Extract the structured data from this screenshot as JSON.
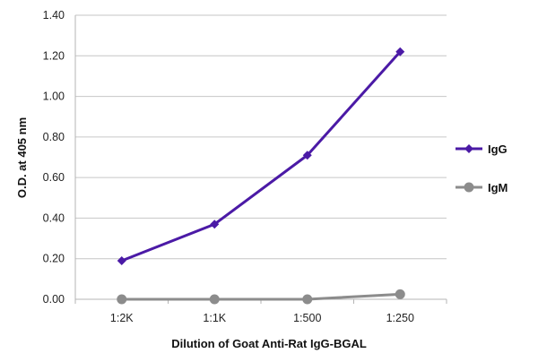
{
  "chart_data": {
    "type": "line",
    "title": "",
    "xlabel": "Dilution of Goat Anti-Rat IgG-BGAL",
    "ylabel": "O.D. at 405 nm",
    "categories": [
      "1:2K",
      "1:1K",
      "1:500",
      "1:250"
    ],
    "ylim": [
      0,
      1.4
    ],
    "yticks": [
      "0.00",
      "0.20",
      "0.40",
      "0.60",
      "0.80",
      "1.00",
      "1.20",
      "1.40"
    ],
    "grid": "horizontal",
    "legend_position": "right",
    "series": [
      {
        "name": "IgG",
        "values": [
          0.19,
          0.37,
          0.71,
          1.22
        ],
        "color": "#4b1aa6",
        "marker": "diamond"
      },
      {
        "name": "IgM",
        "values": [
          0.0,
          0.0,
          0.0,
          0.025
        ],
        "color": "#8c8c8c",
        "marker": "circle"
      }
    ]
  }
}
